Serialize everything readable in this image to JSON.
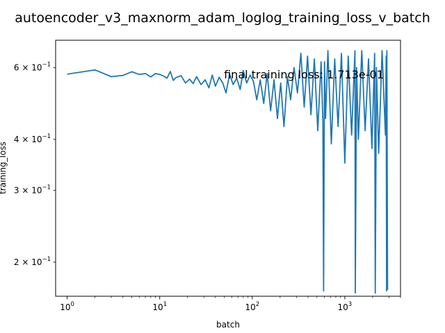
{
  "chart_data": {
    "type": "line",
    "title": "autoencoder_v3_maxnorm_adam_loglog_training_loss_v_batch",
    "xlabel": "batch",
    "ylabel": "training_loss",
    "xscale": "log",
    "yscale": "log",
    "xlim": [
      0.75,
      4000
    ],
    "ylim": [
      0.165,
      0.7
    ],
    "grid": false,
    "annotation": "final training loss: 1.713e-01",
    "x_ticks": [
      {
        "value": 1,
        "base": "10",
        "exp": "0"
      },
      {
        "value": 10,
        "base": "10",
        "exp": "1"
      },
      {
        "value": 100,
        "base": "10",
        "exp": "2"
      },
      {
        "value": 1000,
        "base": "10",
        "exp": "3"
      }
    ],
    "y_ticks": [
      {
        "value": 0.6,
        "mant": "6",
        "base": "10",
        "exp": "−1"
      },
      {
        "value": 0.4,
        "mant": "4",
        "base": "10",
        "exp": "−1"
      },
      {
        "value": 0.3,
        "mant": "3",
        "base": "10",
        "exp": "−1"
      },
      {
        "value": 0.2,
        "mant": "2",
        "base": "10",
        "exp": "−1"
      }
    ],
    "series": [
      {
        "name": "training_loss",
        "color": "#1f77b4",
        "x": [
          1,
          2,
          3,
          4,
          5,
          6,
          7,
          8,
          9,
          10,
          11,
          12,
          13,
          14,
          15,
          17,
          19,
          21,
          23,
          25,
          28,
          31,
          34,
          37,
          40,
          44,
          48,
          52,
          57,
          62,
          68,
          74,
          80,
          87,
          95,
          103,
          112,
          122,
          133,
          145,
          158,
          172,
          187,
          203,
          220,
          240,
          260,
          283,
          308,
          335,
          364,
          396,
          431,
          469,
          510,
          555,
          580,
          590,
          604,
          620,
          657,
          715,
          778,
          846,
          920,
          1001,
          1089,
          1185,
          1289,
          1300,
          1340,
          1402,
          1525,
          1659,
          1805,
          1963,
          2100,
          2135,
          2200,
          2323,
          2527,
          2749,
          2800,
          2830,
          2850,
          2900
        ],
        "values": [
          0.578,
          0.592,
          0.57,
          0.574,
          0.586,
          0.577,
          0.58,
          0.569,
          0.58,
          0.577,
          0.572,
          0.565,
          0.587,
          0.558,
          0.567,
          0.573,
          0.55,
          0.562,
          0.548,
          0.57,
          0.545,
          0.56,
          0.535,
          0.575,
          0.54,
          0.568,
          0.55,
          0.52,
          0.578,
          0.545,
          0.565,
          0.53,
          0.59,
          0.55,
          0.575,
          0.555,
          0.5,
          0.56,
          0.49,
          0.58,
          0.47,
          0.56,
          0.45,
          0.55,
          0.43,
          0.57,
          0.5,
          0.6,
          0.52,
          0.65,
          0.48,
          0.64,
          0.46,
          0.63,
          0.42,
          0.62,
          0.44,
          0.17,
          0.62,
          0.45,
          0.66,
          0.39,
          0.63,
          0.43,
          0.65,
          0.35,
          0.64,
          0.41,
          0.66,
          0.168,
          0.6,
          0.4,
          0.66,
          0.42,
          0.63,
          0.38,
          0.65,
          0.168,
          0.6,
          0.37,
          0.66,
          0.41,
          0.64,
          0.17,
          0.66,
          0.171
        ]
      }
    ]
  }
}
